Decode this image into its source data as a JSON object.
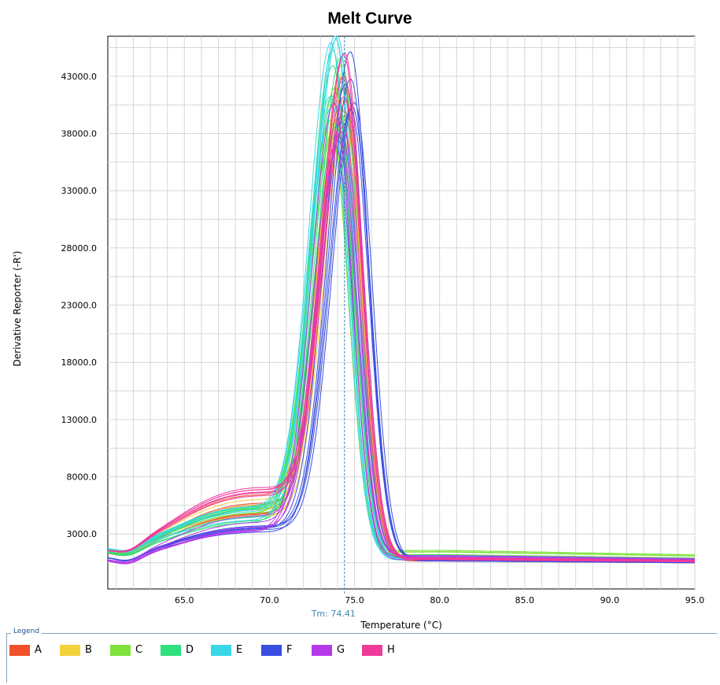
{
  "chart_data": {
    "type": "line",
    "title": "Melt Curve",
    "xlabel": "Temperature (°C)",
    "ylabel": "Derivative Reporter (-R')",
    "xlim": [
      60.5,
      95
    ],
    "ylim": [
      -1800,
      46500
    ],
    "x_ticks": [
      65,
      70,
      75,
      80,
      85,
      90,
      95
    ],
    "x_tick_labels": [
      "65.0",
      "70.0",
      "75.0",
      "80.0",
      "85.0",
      "90.0",
      "95.0"
    ],
    "y_ticks": [
      3000,
      8000,
      13000,
      18000,
      23000,
      28000,
      33000,
      38000,
      43000
    ],
    "y_tick_labels": [
      "3000.0",
      "8000.0",
      "13000.0",
      "18000.0",
      "23000.0",
      "28000.0",
      "33000.0",
      "38000.0",
      "43000.0"
    ],
    "grid": true,
    "threshold_label": "Tm: 74.41",
    "tm_value": 74.41,
    "legend_position": "bottom",
    "series": [
      {
        "name": "A",
        "color": "#f0502a",
        "peak_x": 74.3,
        "peak_y": 45000,
        "base_left": 1200,
        "shoulder": 4800,
        "tail": 700
      },
      {
        "name": "B",
        "color": "#f3d23a",
        "peak_x": 74.5,
        "peak_y": 43000,
        "base_left": 1400,
        "shoulder": 4200,
        "tail": 800
      },
      {
        "name": "C",
        "color": "#7ee23a",
        "peak_x": 73.9,
        "peak_y": 42000,
        "base_left": 1500,
        "shoulder": 3800,
        "tail": 1400
      },
      {
        "name": "D",
        "color": "#2ee07e",
        "peak_x": 73.9,
        "peak_y": 44500,
        "base_left": 1300,
        "shoulder": 3900,
        "tail": 900
      },
      {
        "name": "E",
        "color": "#38d8e8",
        "peak_x": 73.9,
        "peak_y": 46300,
        "base_left": 1600,
        "shoulder": 3600,
        "tail": 900
      },
      {
        "name": "F",
        "color": "#3a4ee0",
        "peak_x": 74.8,
        "peak_y": 46000,
        "base_left": 900,
        "shoulder": 3200,
        "tail": 800
      },
      {
        "name": "G",
        "color": "#b43ae8",
        "peak_x": 74.1,
        "peak_y": 40500,
        "base_left": 600,
        "shoulder": 3700,
        "tail": 900
      },
      {
        "name": "H",
        "color": "#f03a9a",
        "peak_x": 74.4,
        "peak_y": 44000,
        "base_left": 1300,
        "shoulder": 5200,
        "tail": 750
      }
    ]
  }
}
